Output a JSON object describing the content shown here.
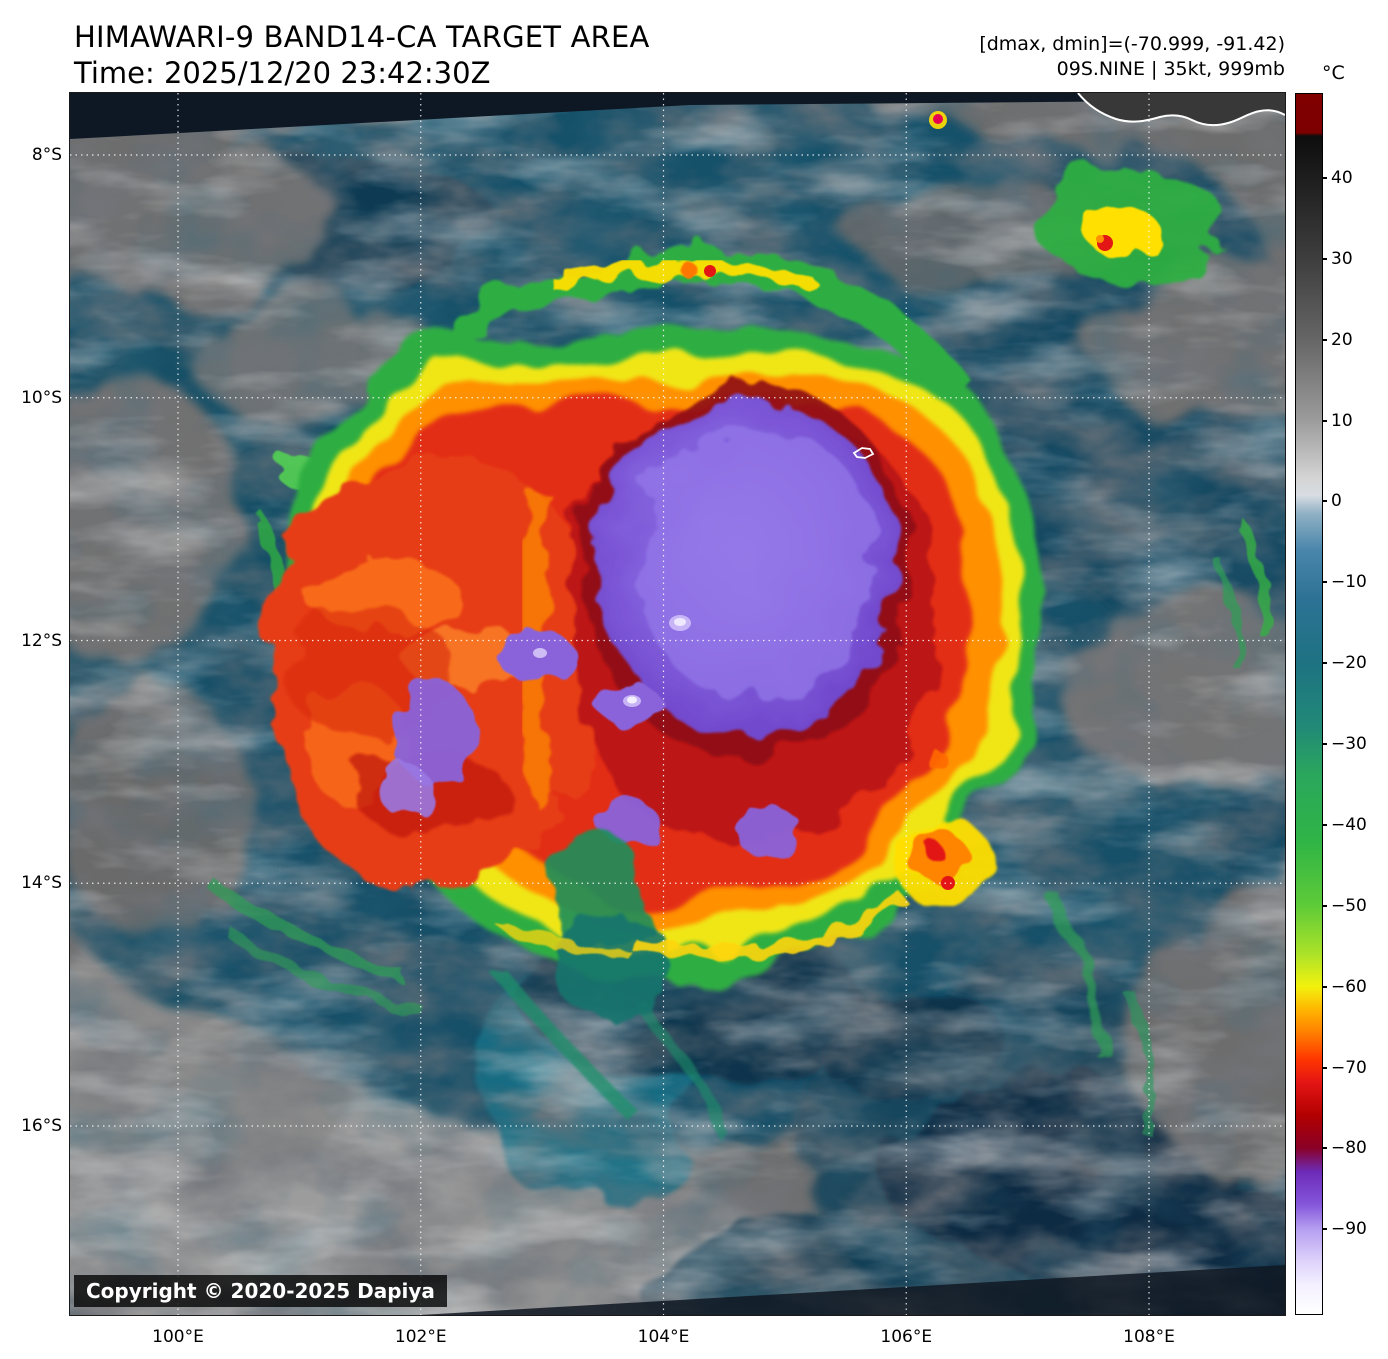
{
  "header": {
    "title": "HIMAWARI-9 BAND14-CA TARGET AREA",
    "time_line": "Time: 2025/12/20 23:42:30Z",
    "dmax_dmin_line": "[dmax, dmin]=(-70.999, -91.42)",
    "storm_line": "09S.NINE | 35kt, 999mb"
  },
  "axes": {
    "lat_ticks": [
      "8°S",
      "10°S",
      "12°S",
      "14°S",
      "16°S"
    ],
    "lon_ticks": [
      "100°E",
      "102°E",
      "104°E",
      "106°E",
      "108°E"
    ]
  },
  "colorbar": {
    "unit": "°C",
    "vmax": 50.5,
    "vmin": -100.6,
    "ticks": [
      40,
      30,
      20,
      10,
      0,
      -10,
      -20,
      -30,
      -40,
      -50,
      -60,
      -70,
      -80,
      -90
    ],
    "stops": [
      {
        "t": 50.5,
        "color": "#800000"
      },
      {
        "t": 45.7,
        "color": "#7d0000"
      },
      {
        "t": 45.3,
        "color": "#0d0d0d"
      },
      {
        "t": 30,
        "color": "#3e3e3e"
      },
      {
        "t": 20,
        "color": "#666666"
      },
      {
        "t": 10,
        "color": "#9c9c9c"
      },
      {
        "t": 3,
        "color": "#d4d4d4"
      },
      {
        "t": 0.8,
        "color": "#d7dde2"
      },
      {
        "t": -1.5,
        "color": "#8fb0c4"
      },
      {
        "t": -6,
        "color": "#4a86ab"
      },
      {
        "t": -12,
        "color": "#2d7295"
      },
      {
        "t": -20,
        "color": "#1e7282"
      },
      {
        "t": -28,
        "color": "#218a76"
      },
      {
        "t": -34,
        "color": "#2ba75c"
      },
      {
        "t": -42,
        "color": "#2fb446"
      },
      {
        "t": -50,
        "color": "#5ecb38"
      },
      {
        "t": -56,
        "color": "#abe228"
      },
      {
        "t": -60,
        "color": "#f2f20e"
      },
      {
        "t": -63,
        "color": "#ffb300"
      },
      {
        "t": -66,
        "color": "#ff7a00"
      },
      {
        "t": -69,
        "color": "#ff3700"
      },
      {
        "t": -72,
        "color": "#e31414"
      },
      {
        "t": -76,
        "color": "#b20000"
      },
      {
        "t": -80,
        "color": "#8a0025"
      },
      {
        "t": -83,
        "color": "#6d2bb8"
      },
      {
        "t": -87,
        "color": "#8455da"
      },
      {
        "t": -90,
        "color": "#b49df0"
      },
      {
        "t": -94,
        "color": "#ddd2fb"
      },
      {
        "t": -97,
        "color": "#f4f0ff"
      },
      {
        "t": -100.6,
        "color": "#ffffff"
      }
    ]
  },
  "overlay": {
    "copyright": "Copyright © 2020-2025 Dapiya"
  }
}
